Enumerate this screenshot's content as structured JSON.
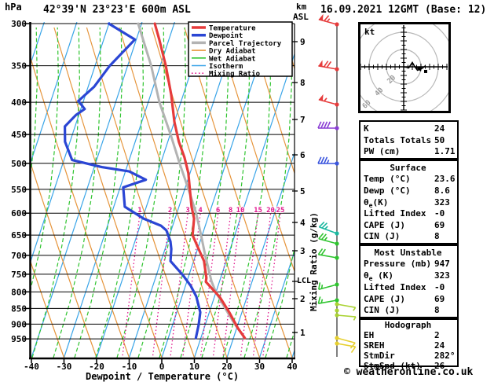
{
  "title": "42°39'N 23°23'E 600m ASL",
  "date_label": "16.09.2021 12GMT (Base: 12)",
  "copyright": "© weatheronline.co.uk",
  "labels": {
    "pressure_unit": "hPa",
    "km_axis_line1": "km",
    "km_axis_line2": "ASL",
    "bottom_axis": "Dewpoint / Temperature (°C)",
    "mixing_axis": "Mixing Ratio (g/kg)",
    "lcl": "LCL"
  },
  "legend": [
    {
      "label": "Temperature",
      "color": "#e63b3b",
      "style": "thick"
    },
    {
      "label": "Dewpoint",
      "color": "#2b46d4",
      "style": "thick"
    },
    {
      "label": "Parcel Trajectory",
      "color": "#b3b3b3",
      "style": "thick"
    },
    {
      "label": "Dry Adiabat",
      "color": "#e6953c",
      "style": "thin"
    },
    {
      "label": "Wet Adiabat",
      "color": "#2fc42f",
      "style": "thin"
    },
    {
      "label": "Isotherm",
      "color": "#3aa5e8",
      "style": "thin"
    },
    {
      "label": "Mixing Ratio",
      "color": "#e0148c",
      "style": "dotted"
    }
  ],
  "chart_data": {
    "type": "skewt-sounding",
    "pressure_unit": "hPa",
    "temp_unit": "°C",
    "pressure_ticks_hpa": [
      300,
      350,
      400,
      450,
      500,
      550,
      600,
      650,
      700,
      750,
      800,
      850,
      900,
      950
    ],
    "temp_ticks_c": [
      -40,
      -30,
      -20,
      -10,
      0,
      10,
      20,
      30,
      40
    ],
    "km_asl_ticks": [
      {
        "label": "9",
        "y": 53
      },
      {
        "label": "8",
        "y": 105
      },
      {
        "label": "7",
        "y": 152
      },
      {
        "label": "6",
        "y": 197
      },
      {
        "label": "5",
        "y": 243
      },
      {
        "label": "4",
        "y": 283
      },
      {
        "label": "3",
        "y": 319
      },
      {
        "label": "2",
        "y": 380
      },
      {
        "label": "1",
        "y": 423
      }
    ],
    "lcl": {
      "y": 358
    },
    "mixing_ratio_values_g_kg": [
      1,
      2,
      3,
      4,
      6,
      8,
      10,
      15,
      20,
      25
    ],
    "series": [
      {
        "name": "Temperature",
        "color": "#e63b3b",
        "width": 3.2,
        "points_p_t": [
          [
            300,
            -33.9
          ],
          [
            318,
            -31.0
          ],
          [
            350,
            -26.5
          ],
          [
            389,
            -22.1
          ],
          [
            430,
            -18.5
          ],
          [
            462,
            -15.3
          ],
          [
            489,
            -12.1
          ],
          [
            518,
            -9.4
          ],
          [
            553,
            -7.2
          ],
          [
            586,
            -5.2
          ],
          [
            612,
            -3.3
          ],
          [
            650,
            -2.2
          ],
          [
            680,
            0.6
          ],
          [
            715,
            3.8
          ],
          [
            760,
            6.1
          ],
          [
            771,
            6.3
          ],
          [
            816,
            12.1
          ],
          [
            862,
            16.4
          ],
          [
            913,
            20.5
          ],
          [
            947,
            23.6
          ]
        ]
      },
      {
        "name": "Dewpoint",
        "color": "#2b46d4",
        "width": 3.2,
        "points_p_t": [
          [
            300,
            -48.0
          ],
          [
            318,
            -38.5
          ],
          [
            350,
            -43.7
          ],
          [
            378,
            -46.5
          ],
          [
            398,
            -50.0
          ],
          [
            410,
            -47.3
          ],
          [
            419,
            -49.4
          ],
          [
            437,
            -51.7
          ],
          [
            462,
            -50.2
          ],
          [
            494,
            -46.3
          ],
          [
            507,
            -36.5
          ],
          [
            515,
            -27.7
          ],
          [
            531,
            -21.8
          ],
          [
            546,
            -28.0
          ],
          [
            586,
            -25.7
          ],
          [
            612,
            -18.8
          ],
          [
            628,
            -12.8
          ],
          [
            639,
            -10.7
          ],
          [
            665,
            -8.4
          ],
          [
            684,
            -7.4
          ],
          [
            715,
            -6.5
          ],
          [
            753,
            -1.3
          ],
          [
            782,
            2.0
          ],
          [
            814,
            4.8
          ],
          [
            862,
            7.5
          ],
          [
            902,
            8.2
          ],
          [
            947,
            8.6
          ]
        ]
      },
      {
        "name": "Parcel Trajectory",
        "color": "#b3b3b3",
        "width": 3.0,
        "points_p_t": [
          [
            300,
            -39.0
          ],
          [
            350,
            -31.0
          ],
          [
            400,
            -25.0
          ],
          [
            450,
            -18.5
          ],
          [
            500,
            -13.0
          ],
          [
            550,
            -7.8
          ],
          [
            600,
            -3.2
          ],
          [
            650,
            0.4
          ],
          [
            700,
            3.6
          ],
          [
            770,
            8.0
          ],
          [
            800,
            10.3
          ],
          [
            850,
            14.8
          ],
          [
            900,
            19.2
          ],
          [
            947,
            23.6
          ]
        ]
      }
    ]
  },
  "wind_barbs": [
    {
      "y": 31,
      "color": "#e63b3b",
      "speed_kt": 65,
      "dir_deg": 285
    },
    {
      "y": 88,
      "color": "#e63b3b",
      "speed_kt": 70,
      "dir_deg": 280
    },
    {
      "y": 133,
      "color": "#e63b3b",
      "speed_kt": 55,
      "dir_deg": 285
    },
    {
      "y": 163,
      "color": "#8a3dd4",
      "speed_kt": 40,
      "dir_deg": 270
    },
    {
      "y": 208,
      "color": "#3a55dd",
      "speed_kt": 35,
      "dir_deg": 270
    },
    {
      "y": 297,
      "color": "#1ab8a0",
      "speed_kt": 25,
      "dir_deg": 290
    },
    {
      "y": 310,
      "color": "#2fc42f",
      "speed_kt": 25,
      "dir_deg": 285
    },
    {
      "y": 328,
      "color": "#2fc42f",
      "speed_kt": 20,
      "dir_deg": 280
    },
    {
      "y": 362,
      "color": "#2fc42f",
      "speed_kt": 15,
      "dir_deg": 255
    },
    {
      "y": 382,
      "color": "#2fc42f",
      "speed_kt": 15,
      "dir_deg": 260
    },
    {
      "y": 387,
      "color": "#aad333",
      "speed_kt": 5,
      "dir_deg": 100
    },
    {
      "y": 395,
      "color": "#aad333",
      "speed_kt": 0,
      "dir_deg": 100
    },
    {
      "y": 401,
      "color": "#aad333",
      "speed_kt": 5,
      "dir_deg": 95
    },
    {
      "y": 430,
      "color": "#e6cf2e",
      "speed_kt": 10,
      "dir_deg": 105
    },
    {
      "y": 437,
      "color": "#e6cf2e",
      "speed_kt": 10,
      "dir_deg": 100
    }
  ],
  "hodograph": {
    "unit_label": "kt",
    "rings_kt": [
      20,
      40,
      60
    ],
    "ring_labels": [
      "20",
      "40",
      "60"
    ],
    "trace_kt": [
      [
        0,
        0
      ],
      [
        6,
        -1
      ],
      [
        10,
        5
      ],
      [
        13,
        0
      ],
      [
        16,
        -4
      ],
      [
        21,
        -2
      ],
      [
        25,
        1
      ]
    ],
    "storm_dir_deg": 282,
    "storm_speed_kt": 26
  },
  "panel": {
    "boxes": [
      {
        "header": "",
        "rows": [
          [
            "K",
            "24"
          ],
          [
            "Totals Totals",
            "50"
          ],
          [
            "PW (cm)",
            "1.71"
          ]
        ]
      },
      {
        "header": "Surface",
        "rows": [
          [
            "Temp (°C)",
            "23.6"
          ],
          [
            "Dewp (°C)",
            "8.6"
          ],
          [
            "θe(K)",
            "323"
          ],
          [
            "Lifted Index",
            "-0"
          ],
          [
            "CAPE (J)",
            "69"
          ],
          [
            "CIN (J)",
            "8"
          ]
        ]
      },
      {
        "header": "Most Unstable",
        "rows": [
          [
            "Pressure (mb)",
            "947"
          ],
          [
            "θe (K)",
            "323"
          ],
          [
            "Lifted Index",
            "-0"
          ],
          [
            "CAPE (J)",
            "69"
          ],
          [
            "CIN (J)",
            "8"
          ]
        ]
      },
      {
        "header": "Hodograph",
        "rows": [
          [
            "EH",
            "2"
          ],
          [
            "SREH",
            "24"
          ],
          [
            "StmDir",
            "282°"
          ],
          [
            "StmSpd (kt)",
            "26"
          ]
        ]
      }
    ]
  }
}
